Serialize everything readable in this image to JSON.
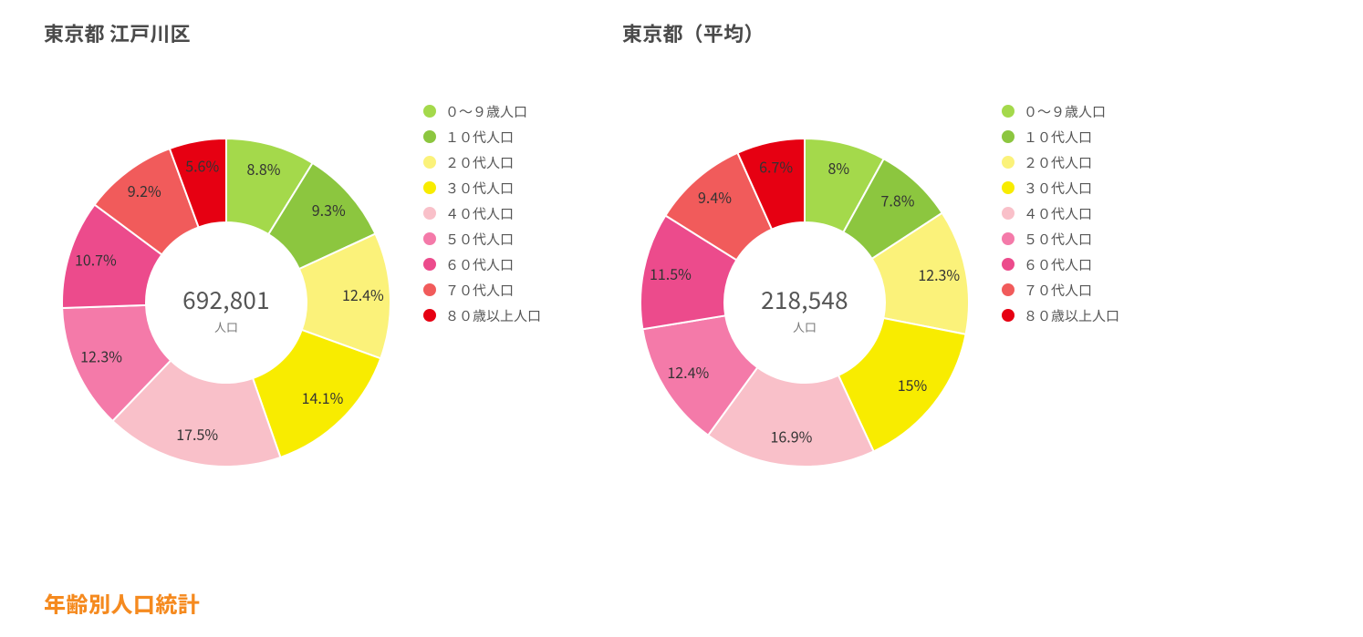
{
  "section_title": "年齢別人口統計",
  "accent_color": "#f58a1f",
  "background_color": "#ffffff",
  "legend_labels": [
    "０～９歳人口",
    "１０代人口",
    "２０代人口",
    "３０代人口",
    "４０代人口",
    "５０代人口",
    "６０代人口",
    "７０代人口",
    "８０歳以上人口"
  ],
  "series_colors": [
    "#a4d94b",
    "#8cc63f",
    "#fbf27a",
    "#f8ec00",
    "#f9c0c9",
    "#f47aa9",
    "#ec4b8c",
    "#f15b5b",
    "#e60012"
  ],
  "donut": {
    "outer_radius": 180,
    "inner_radius": 88,
    "label_radius": 150,
    "stroke_color": "#ffffff",
    "stroke_width": 2,
    "center_value_fontsize": 26,
    "center_value_color": "#555555",
    "center_label_fontsize": 13,
    "center_label_color": "#777777",
    "center_label_text": "人口",
    "slice_label_fontsize": 16,
    "slice_label_color": "#333333"
  },
  "charts": [
    {
      "title": "東京都 江戸川区",
      "center_value": "692,801",
      "slices": [
        {
          "label": "8.8%",
          "value": 8.8
        },
        {
          "label": "9.3%",
          "value": 9.3
        },
        {
          "label": "12.4%",
          "value": 12.4
        },
        {
          "label": "14.1%",
          "value": 14.1
        },
        {
          "label": "17.5%",
          "value": 17.5
        },
        {
          "label": "12.3%",
          "value": 12.3
        },
        {
          "label": "10.7%",
          "value": 10.7
        },
        {
          "label": "9.2%",
          "value": 9.2
        },
        {
          "label": "5.6%",
          "value": 5.6
        }
      ]
    },
    {
      "title": "東京都（平均）",
      "center_value": "218,548",
      "slices": [
        {
          "label": "8%",
          "value": 8.0
        },
        {
          "label": "7.8%",
          "value": 7.8
        },
        {
          "label": "12.3%",
          "value": 12.3
        },
        {
          "label": "15%",
          "value": 15.0
        },
        {
          "label": "16.9%",
          "value": 16.9
        },
        {
          "label": "12.4%",
          "value": 12.4
        },
        {
          "label": "11.5%",
          "value": 11.5
        },
        {
          "label": "9.4%",
          "value": 9.4
        },
        {
          "label": "6.7%",
          "value": 6.7
        }
      ]
    }
  ]
}
